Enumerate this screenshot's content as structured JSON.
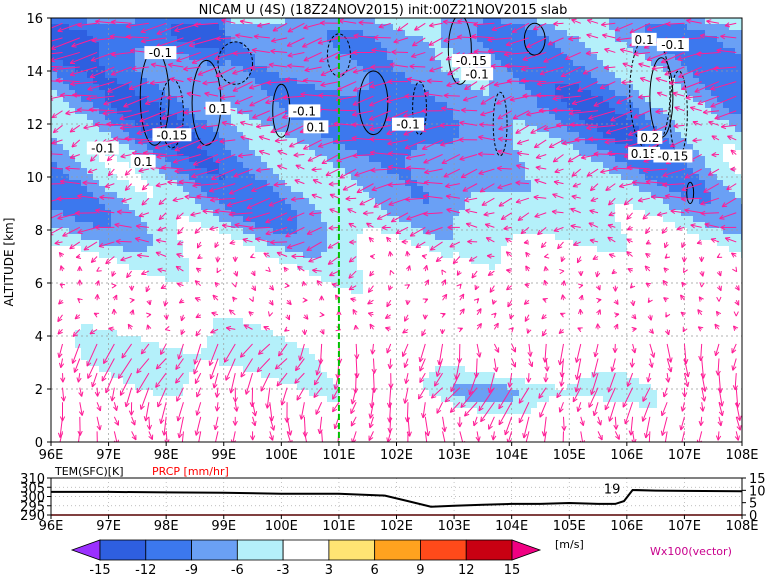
{
  "title": "NICAM U (4S) (18Z24NOV2015) init:00Z21NOV2015 slab",
  "chart_data": [
    {
      "type": "heatmap",
      "title": "NICAM U (4S) (18Z24NOV2015) init:00Z21NOV2015 slab",
      "ylabel": "ALTITUDE [km]",
      "x_ticks": [
        "96E",
        "97E",
        "98E",
        "99E",
        "100E",
        "101E",
        "102E",
        "103E",
        "104E",
        "105E",
        "106E",
        "107E",
        "108E"
      ],
      "y_ticks": [
        "0",
        "2",
        "4",
        "6",
        "8",
        "10",
        "12",
        "14",
        "16"
      ],
      "xlim": [
        96,
        108
      ],
      "ylim": [
        0,
        16
      ],
      "grid": true,
      "marker_longitude": 101,
      "contour_labels": [
        {
          "text": "-0.1",
          "lon": 97.9,
          "alt": 14.6
        },
        {
          "text": "0.1",
          "lon": 98.9,
          "alt": 12.5
        },
        {
          "text": "-0.15",
          "lon": 98.1,
          "alt": 11.5
        },
        {
          "text": "-0.1",
          "lon": 96.9,
          "alt": 11.0
        },
        {
          "text": "0.1",
          "lon": 97.6,
          "alt": 10.5
        },
        {
          "text": "-0.1",
          "lon": 100.4,
          "alt": 12.4
        },
        {
          "text": "0.1",
          "lon": 100.6,
          "alt": 11.8
        },
        {
          "text": "-0.1",
          "lon": 102.2,
          "alt": 11.9
        },
        {
          "text": "-0.15",
          "lon": 103.3,
          "alt": 14.3
        },
        {
          "text": "-0.1",
          "lon": 103.4,
          "alt": 13.8
        },
        {
          "text": "0.1",
          "lon": 106.3,
          "alt": 15.1
        },
        {
          "text": "-0.1",
          "lon": 106.8,
          "alt": 14.9
        },
        {
          "text": "0.2",
          "lon": 106.4,
          "alt": 11.4
        },
        {
          "text": "0.15",
          "lon": 106.3,
          "alt": 10.8
        },
        {
          "text": "-0.15",
          "lon": 106.8,
          "alt": 10.7
        }
      ]
    },
    {
      "type": "line",
      "left_label": "TEM(SFC)[K]",
      "right_label": "PRCP [mm/hr]",
      "left_ticks": [
        "310",
        "305",
        "300",
        "295",
        "290"
      ],
      "right_ticks": [
        "15",
        "10",
        "5",
        "0"
      ],
      "x_ticks": [
        "96E",
        "97E",
        "98E",
        "99E",
        "100E",
        "101E",
        "102E",
        "103E",
        "104E",
        "105E",
        "106E",
        "107E",
        "108E"
      ],
      "annotation": "19",
      "temperature": {
        "lon": [
          96,
          97,
          98,
          99,
          100,
          101,
          101.8,
          102.2,
          102.6,
          103,
          103.5,
          104,
          104.5,
          105,
          105.5,
          105.8,
          105.95,
          106.1,
          106.5,
          107,
          108
        ],
        "value": [
          302.5,
          302.5,
          302.2,
          302.0,
          301.5,
          301.5,
          300.5,
          297.5,
          294.5,
          295.0,
          295.5,
          296.0,
          296.0,
          296.5,
          296.0,
          296.0,
          297.5,
          303.5,
          303.2,
          303.0,
          302.8
        ]
      },
      "precip_zero_line": 0
    }
  ],
  "colorbar": {
    "ticks": [
      "-15",
      "-12",
      "-9",
      "-6",
      "-3",
      "3",
      "6",
      "9",
      "12",
      "15"
    ],
    "unit": "[m/s]",
    "colors": [
      "#9b30ff",
      "#2e5fe0",
      "#3c78ee",
      "#6aa0f5",
      "#b4f0fa",
      "#ffffff",
      "#ffe473",
      "#ffa21f",
      "#ff4a1a",
      "#c80012",
      "#f00082"
    ]
  },
  "vector_label": "Wx100(vector)",
  "colors": {
    "vector": "#ff1e96",
    "marker_line": "#00c000",
    "precip_line": "#ff0000",
    "prcp_label": "#ff0000"
  }
}
